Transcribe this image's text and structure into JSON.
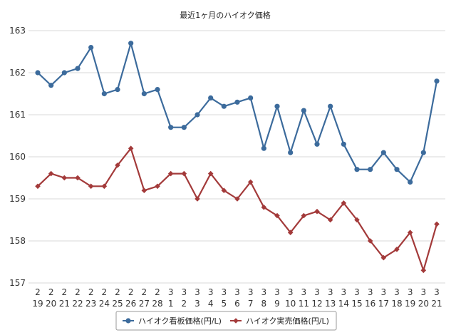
{
  "chart_data": {
    "type": "line",
    "title": "最近1ヶ月のハイオク価格",
    "ylim": [
      157,
      163
    ],
    "yticks": [
      157,
      158,
      159,
      160,
      161,
      162,
      163
    ],
    "grid": true,
    "legend_position": "bottom",
    "categories": [
      {
        "month": "2",
        "day": "19"
      },
      {
        "month": "2",
        "day": "20"
      },
      {
        "month": "2",
        "day": "21"
      },
      {
        "month": "2",
        "day": "22"
      },
      {
        "month": "2",
        "day": "23"
      },
      {
        "month": "2",
        "day": "24"
      },
      {
        "month": "2",
        "day": "25"
      },
      {
        "month": "2",
        "day": "26"
      },
      {
        "month": "2",
        "day": "27"
      },
      {
        "month": "2",
        "day": "28"
      },
      {
        "month": "3",
        "day": "1"
      },
      {
        "month": "3",
        "day": "2"
      },
      {
        "month": "3",
        "day": "3"
      },
      {
        "month": "3",
        "day": "4"
      },
      {
        "month": "3",
        "day": "5"
      },
      {
        "month": "3",
        "day": "6"
      },
      {
        "month": "3",
        "day": "7"
      },
      {
        "month": "3",
        "day": "8"
      },
      {
        "month": "3",
        "day": "9"
      },
      {
        "month": "3",
        "day": "10"
      },
      {
        "month": "3",
        "day": "11"
      },
      {
        "month": "3",
        "day": "12"
      },
      {
        "month": "3",
        "day": "13"
      },
      {
        "month": "3",
        "day": "14"
      },
      {
        "month": "3",
        "day": "15"
      },
      {
        "month": "3",
        "day": "16"
      },
      {
        "month": "3",
        "day": "17"
      },
      {
        "month": "3",
        "day": "18"
      },
      {
        "month": "3",
        "day": "19"
      },
      {
        "month": "3",
        "day": "20"
      },
      {
        "month": "3",
        "day": "21"
      }
    ],
    "series": [
      {
        "name": "ハイオク看板価格(円/L)",
        "color": "#3c6b9c",
        "marker": "circle",
        "values": [
          162.0,
          161.7,
          162.0,
          162.1,
          162.6,
          161.5,
          161.6,
          162.7,
          161.5,
          161.6,
          160.7,
          160.7,
          161.0,
          161.4,
          161.2,
          161.3,
          161.4,
          160.2,
          161.2,
          160.1,
          161.1,
          160.3,
          161.2,
          160.3,
          159.7,
          159.7,
          160.1,
          159.7,
          159.4,
          160.1,
          161.8
        ]
      },
      {
        "name": "ハイオク実売価格(円/L)",
        "color": "#a33a3a",
        "marker": "diamond",
        "values": [
          159.3,
          159.6,
          159.5,
          159.5,
          159.3,
          159.3,
          159.8,
          160.2,
          159.2,
          159.3,
          159.6,
          159.6,
          159.0,
          159.6,
          159.2,
          159.0,
          159.4,
          158.8,
          158.6,
          158.2,
          158.6,
          158.7,
          158.5,
          158.9,
          158.5,
          158.0,
          157.6,
          157.8,
          158.2,
          157.3,
          158.4
        ]
      }
    ]
  }
}
